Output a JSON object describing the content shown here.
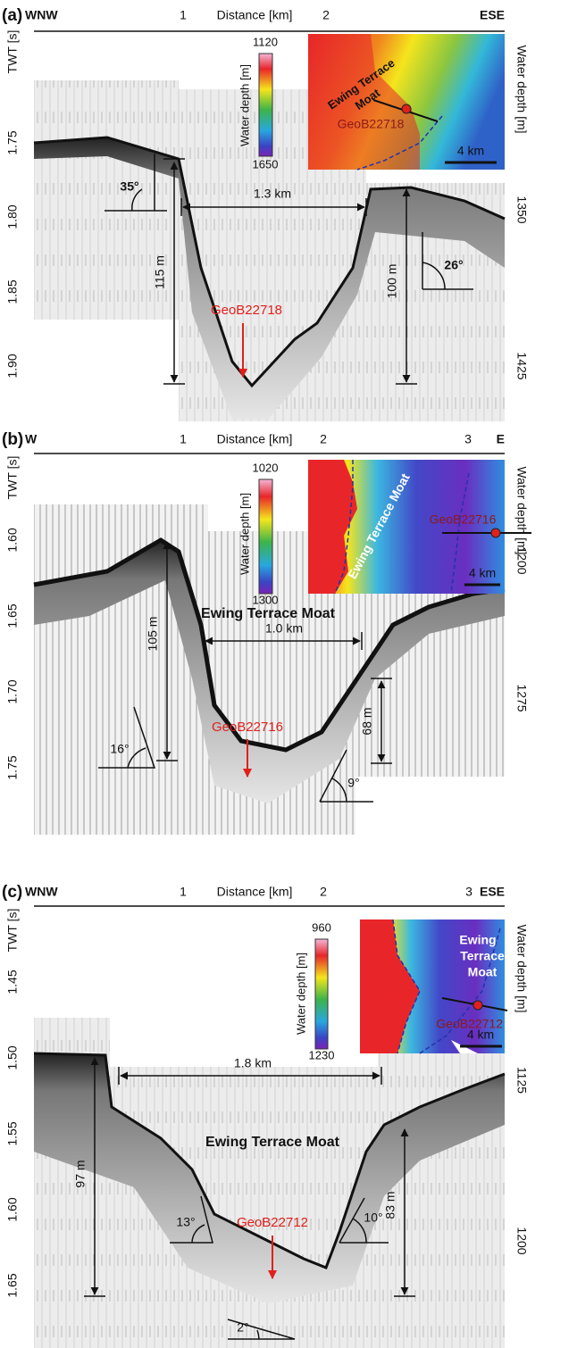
{
  "panels": [
    {
      "label": "(a)",
      "left": "WNW",
      "right": "ESE",
      "x_title": "Distance [km]",
      "x_ticks": [
        "1",
        "2"
      ],
      "y_title": "TWT [s]",
      "y_ticks": [
        "1.75",
        "1.80",
        "1.85",
        "1.90"
      ],
      "y2_title": "Water depth [m]",
      "y2_ticks": [
        "1350",
        "1425"
      ],
      "inset": {
        "colorbar_title": "Water depth [m]",
        "colorbar_max": "1120",
        "colorbar_min": "1650",
        "feature": [
          "Ewing Terrace",
          "Moat"
        ],
        "site": "GeoB22718",
        "scale": "4 km"
      },
      "annotations": {
        "width": "1.3 km",
        "left_height": "115 m",
        "right_height": "100 m",
        "left_angle": "35°",
        "right_angle": "26°",
        "site": "GeoB22718"
      }
    },
    {
      "label": "(b)",
      "left": "W",
      "right": "E",
      "x_title": "Distance [km]",
      "x_ticks": [
        "1",
        "2",
        "3"
      ],
      "y_title": "TWT [s]",
      "y_ticks": [
        "1.60",
        "1.65",
        "1.70",
        "1.75"
      ],
      "y2_title": "Water depth [m]",
      "y2_ticks": [
        "1200",
        "1275"
      ],
      "inset": {
        "colorbar_title": "Water depth [m]",
        "colorbar_max": "1020",
        "colorbar_min": "1300",
        "feature": [
          "Ewing Terrace Moat"
        ],
        "site": "GeoB22716",
        "scale": "4 km"
      },
      "annotations": {
        "feature": "Ewing Terrace Moat",
        "width": "1.0 km",
        "left_height": "105 m",
        "right_height": "68 m",
        "left_angle": "16°",
        "right_angle": "9°",
        "site": "GeoB22716"
      }
    },
    {
      "label": "(c)",
      "left": "WNW",
      "right": "ESE",
      "x_title": "Distance [km]",
      "x_ticks": [
        "1",
        "2",
        "3"
      ],
      "y_title": "TWT [s]",
      "y_ticks": [
        "1.45",
        "1.50",
        "1.55",
        "1.60",
        "1.65"
      ],
      "y2_title": "Water depth [m]",
      "y2_ticks": [
        "1125",
        "1200"
      ],
      "inset": {
        "colorbar_title": "Water depth [m]",
        "colorbar_max": "960",
        "colorbar_min": "1230",
        "feature": [
          "Ewing",
          "Terrace",
          "Moat"
        ],
        "site": "GeoB22712",
        "scale": "4 km"
      },
      "annotations": {
        "feature": "Ewing Terrace Moat",
        "width": "1.8 km",
        "left_height": "97 m",
        "right_height": "83 m",
        "left_angle": "13°",
        "right_angle": "10°",
        "bottom_angle": "2°",
        "site": "GeoB22712"
      }
    }
  ]
}
